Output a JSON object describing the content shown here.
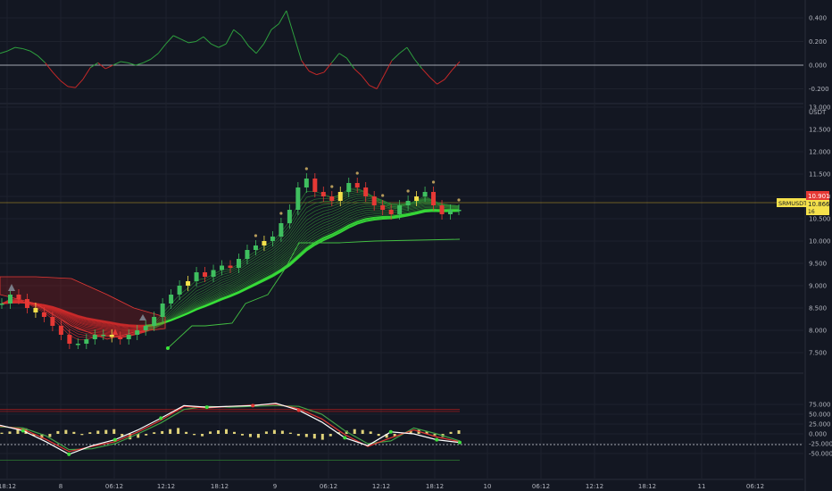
{
  "chart_data": [
    {
      "pane": "oscillator",
      "type": "line",
      "yticks": [
        "0.400",
        "0.200",
        "0.000",
        "-0.200"
      ],
      "ylim": [
        -0.3,
        0.47
      ],
      "zero_line": 0.0,
      "colors": {
        "positive": "#2e9f3e",
        "negative": "#c62828",
        "zero": "#d1d4dc"
      },
      "values": [
        0.1,
        0.12,
        0.15,
        0.14,
        0.12,
        0.08,
        0.02,
        -0.06,
        -0.13,
        -0.18,
        -0.19,
        -0.12,
        -0.02,
        0.02,
        -0.03,
        0.0,
        0.03,
        0.02,
        0.0,
        0.02,
        0.05,
        0.1,
        0.18,
        0.25,
        0.22,
        0.19,
        0.2,
        0.24,
        0.18,
        0.15,
        0.18,
        0.3,
        0.25,
        0.16,
        0.1,
        0.18,
        0.3,
        0.35,
        0.46,
        0.25,
        0.04,
        -0.05,
        -0.08,
        -0.06,
        0.02,
        0.1,
        0.06,
        -0.03,
        -0.09,
        -0.17,
        -0.2,
        -0.08,
        0.04,
        0.1,
        0.15,
        0.05,
        -0.03,
        -0.1,
        -0.16,
        -0.12,
        -0.04,
        0.03
      ]
    },
    {
      "pane": "price",
      "type": "candlestick",
      "symbol_tag": "SRMUSDT",
      "ylabel": "USDT",
      "yticks": [
        "13.000",
        "12.500",
        "12.000",
        "11.500",
        "11.000",
        "10.500",
        "10.000",
        "9.500",
        "9.000",
        "8.500",
        "8.000",
        "7.500"
      ],
      "ylim": [
        7.0,
        13.0
      ],
      "last_price": "10.901",
      "last_price_2": "10.866",
      "last_price_3": "16",
      "colors": {
        "up": "#3fbf5f",
        "down": "#e53935",
        "highlight": "#f5e14b",
        "tag_bg": "#f5e14b",
        "last_bg": "#e53935"
      },
      "close": [
        8.6,
        8.8,
        8.7,
        8.5,
        8.4,
        8.3,
        8.1,
        7.9,
        7.7,
        7.7,
        7.8,
        7.9,
        7.9,
        7.85,
        7.8,
        7.9,
        8.0,
        8.1,
        8.3,
        8.6,
        8.8,
        9.0,
        9.1,
        9.3,
        9.2,
        9.35,
        9.45,
        9.4,
        9.6,
        9.8,
        9.9,
        10.0,
        10.1,
        10.4,
        10.7,
        11.2,
        11.4,
        11.1,
        11.0,
        10.9,
        11.1,
        11.3,
        11.2,
        11.0,
        10.8,
        10.7,
        10.6,
        10.8,
        10.9,
        11.0,
        11.1,
        10.8,
        10.6,
        10.7,
        10.7
      ]
    },
    {
      "pane": "rsi",
      "type": "line",
      "yticks": [
        "75.000",
        "50.000",
        "25.000",
        "0.000",
        "-25.000",
        "-50.000"
      ],
      "ylim": [
        -58,
        82
      ],
      "lines": [
        62,
        57,
        -67
      ],
      "colors": {
        "white": "#ffffff",
        "red": "#e53935",
        "green": "#43a047",
        "dot": "#3fdf3f",
        "hist": "#e0d37a"
      },
      "white_line": [
        22,
        8,
        -20,
        -52,
        -30,
        -15,
        10,
        40,
        72,
        68,
        70,
        72,
        78,
        60,
        30,
        -10,
        -30,
        5,
        0,
        -15,
        -22
      ],
      "red_line": [
        20,
        12,
        -14,
        -45,
        -32,
        -20,
        5,
        35,
        70,
        66,
        70,
        73,
        76,
        64,
        38,
        -2,
        -32,
        -10,
        10,
        -8,
        -20
      ],
      "green_line": [
        18,
        15,
        -5,
        -40,
        -38,
        -25,
        0,
        28,
        62,
        70,
        68,
        70,
        72,
        70,
        50,
        8,
        -25,
        -18,
        15,
        0,
        -18
      ],
      "histogram": [
        3,
        6,
        12,
        14,
        -5,
        -12,
        -8,
        7,
        10,
        5,
        -3,
        4,
        8,
        10,
        12,
        -6,
        -14,
        -10,
        -4,
        4,
        7,
        12,
        15,
        5,
        -3,
        -6,
        6,
        9,
        12,
        5,
        -4,
        -8,
        -10,
        6,
        10,
        8,
        3,
        -5,
        -8,
        -12,
        -15,
        -6,
        4,
        8,
        12,
        10,
        6,
        -5,
        -10,
        -6,
        3,
        7,
        10,
        6,
        -4,
        -8,
        5,
        9
      ]
    }
  ],
  "xaxis": {
    "ticks": [
      "18:12",
      "8",
      "06:12",
      "12:12",
      "18:12",
      "9",
      "06:12",
      "12:12",
      "18:12",
      "10",
      "06:12",
      "12:12",
      "18:12",
      "11",
      "06:12"
    ]
  }
}
